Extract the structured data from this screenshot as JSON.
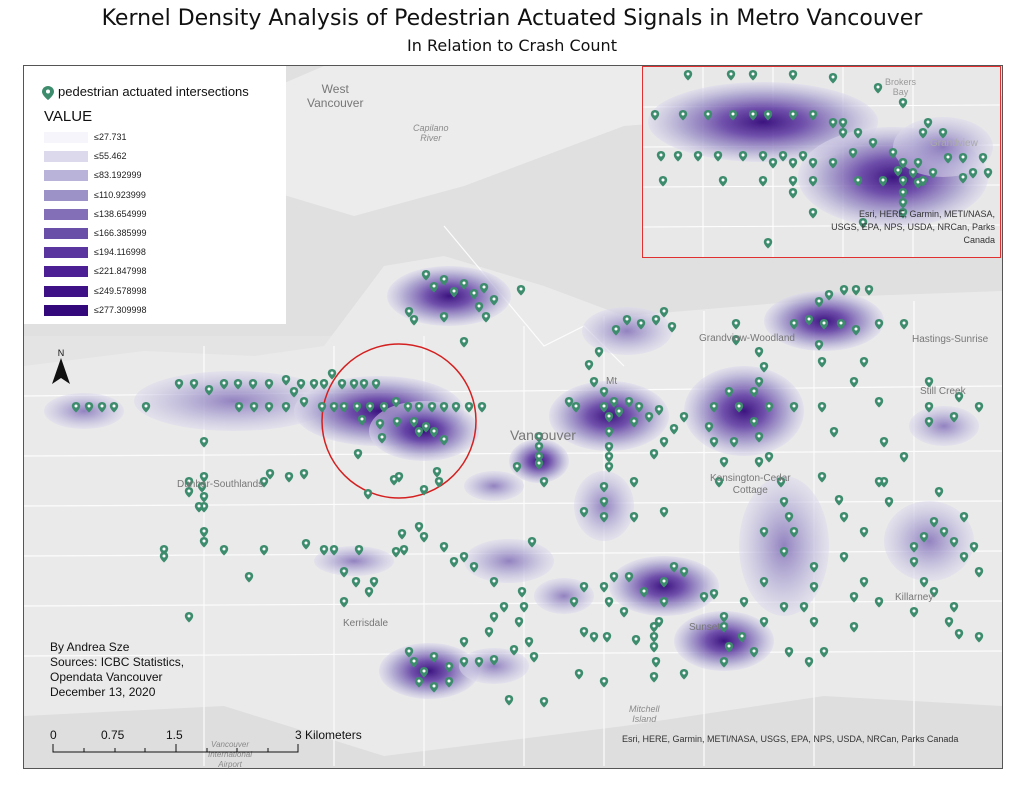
{
  "title": "Kernel Density Analysis of Pedestrian Actuated Signals in Metro Vancouver",
  "subtitle": "In Relation to Crash Count",
  "legend": {
    "point_label": "pedestrian actuated intersections",
    "value_title": "VALUE",
    "classes": [
      {
        "label": "≤27.731",
        "color": "#f6f5fb"
      },
      {
        "label": "≤55.462",
        "color": "#dcd9ec"
      },
      {
        "label": "≤83.192999",
        "color": "#b9b3d9"
      },
      {
        "label": "≤110.923999",
        "color": "#9c92c8"
      },
      {
        "label": "≤138.654999",
        "color": "#826fb8"
      },
      {
        "label": "≤166.385999",
        "color": "#6a4fa8"
      },
      {
        "label": "≤194.116998",
        "color": "#5a35a0"
      },
      {
        "label": "≤221.847998",
        "color": "#4d1f94"
      },
      {
        "label": "≤249.578998",
        "color": "#3f1187"
      },
      {
        "label": "≤277.309998",
        "color": "#33087a"
      }
    ],
    "point_color": "#3e8c6e"
  },
  "places": {
    "west_vancouver": "West\nVancouver",
    "capilano_river": "Capilano\nRiver",
    "grandview_woodland": "Grandview-Woodland",
    "hastings_sunrise": "Hastings-Sunrise",
    "still_creek": "Still Creek",
    "dunbar_southlands": "Dunbar-Southlands",
    "vancouver": "Vancouver",
    "mt": "Mt",
    "kensington_cedar_cottage": "Kensington-Cedar\nCottage",
    "killarney": "Killarney",
    "kerrisdale": "Kerrisdale",
    "sunset": "Sunset",
    "mitchell_island": "Mitchell\nIsland",
    "vancouver_airport": "Vancouver\nInternational\nAirport",
    "brokers_bay": "Brokers\nBay",
    "grandview_inset": "Grandview"
  },
  "credits": {
    "author": "By Andrea Sze",
    "sources_1": "Sources: ICBC Statistics,",
    "sources_2": "Opendata Vancouver",
    "date": "December 13, 2020"
  },
  "scale_bar": {
    "labels": [
      "0",
      "0.75",
      "1.5",
      "3 Kilometers"
    ]
  },
  "north_label": "N",
  "attribution": "Esri, HERE, Garmin, METI/NASA, USGS, EPA, NPS, USDA, NRCan, Parks Canada",
  "inset_attribution_1": "Esri, HERE, Garmin, METI/NASA,",
  "inset_attribution_2": "USGS, EPA, NPS, USDA, NRCan, Parks",
  "inset_attribution_3": "Canada"
}
